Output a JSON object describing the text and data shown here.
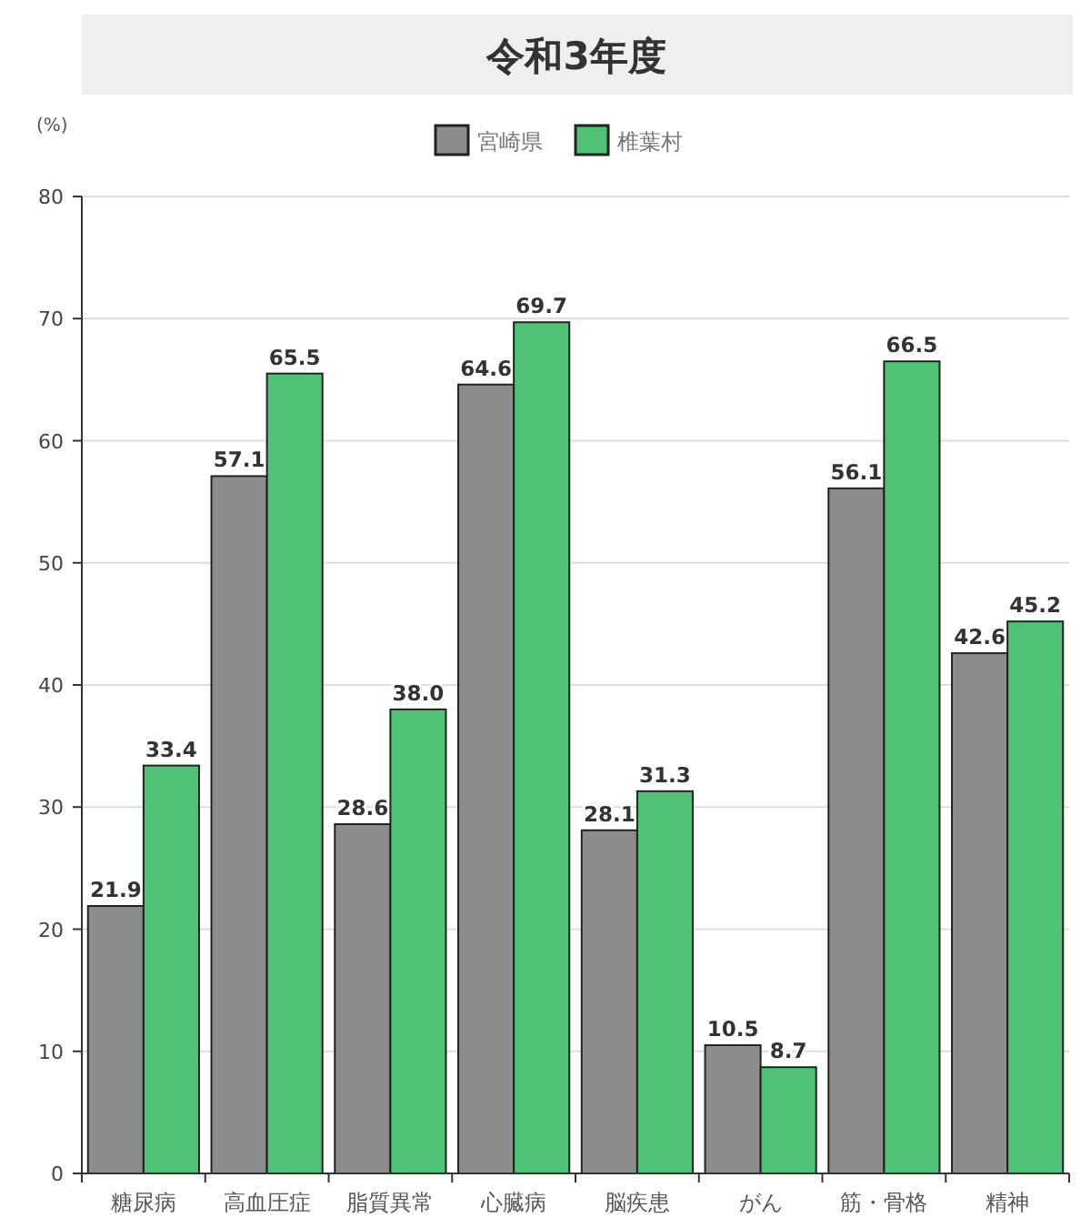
{
  "chart_data": {
    "type": "bar",
    "title": "令和3年度",
    "ylabel": "(%)",
    "categories": [
      "糖尿病",
      "高血圧症",
      "脂質異常",
      "心臓病",
      "脳疾患",
      "がん",
      "筋・骨格",
      "精神"
    ],
    "series": [
      {
        "name": "宮崎県",
        "color": "#8c8c8c",
        "values": [
          21.9,
          57.1,
          28.6,
          64.6,
          28.1,
          10.5,
          56.1,
          42.6
        ],
        "value_labels": [
          "21.9",
          "57.1",
          "28.6",
          "64.6",
          "28.1",
          "10.5",
          "56.1",
          "42.6"
        ]
      },
      {
        "name": "椎葉村",
        "color": "#4fc276",
        "values": [
          33.4,
          65.5,
          38.0,
          69.7,
          31.3,
          8.7,
          66.5,
          45.2
        ],
        "value_labels": [
          "33.4",
          "65.5",
          "38.0",
          "69.7",
          "31.3",
          "8.7",
          "66.5",
          "45.2"
        ]
      }
    ],
    "ylim": [
      0,
      80
    ],
    "yticks": [
      0,
      10,
      20,
      30,
      40,
      50,
      60,
      70,
      80
    ],
    "grid": "y",
    "legend": "top"
  }
}
